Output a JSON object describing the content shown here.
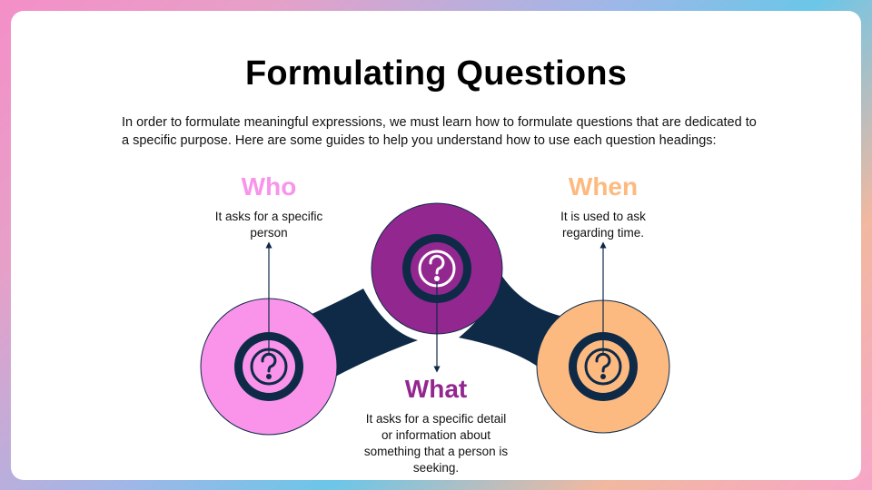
{
  "slide": {
    "title": "Formulating Questions",
    "intro": "In order to formulate meaningful expressions, we must learn how to formulate questions that are dedicated to a specific purpose. Here are some guides to help you understand how to use each question headings:"
  },
  "items": [
    {
      "heading": "Who",
      "description": "It asks for a specific person",
      "color": "#f994ea",
      "icon": "question-mark-icon"
    },
    {
      "heading": "What",
      "description": "It asks for a specific detail or information about something that a person is seeking.",
      "color": "#92278f",
      "icon": "question-mark-icon"
    },
    {
      "heading": "When",
      "description": "It is used to ask regarding time.",
      "color": "#fdba80",
      "icon": "question-mark-icon"
    }
  ],
  "colors": {
    "connector": "#0e2a47",
    "who": "#f994ea",
    "what": "#92278f",
    "when": "#fdba80"
  }
}
